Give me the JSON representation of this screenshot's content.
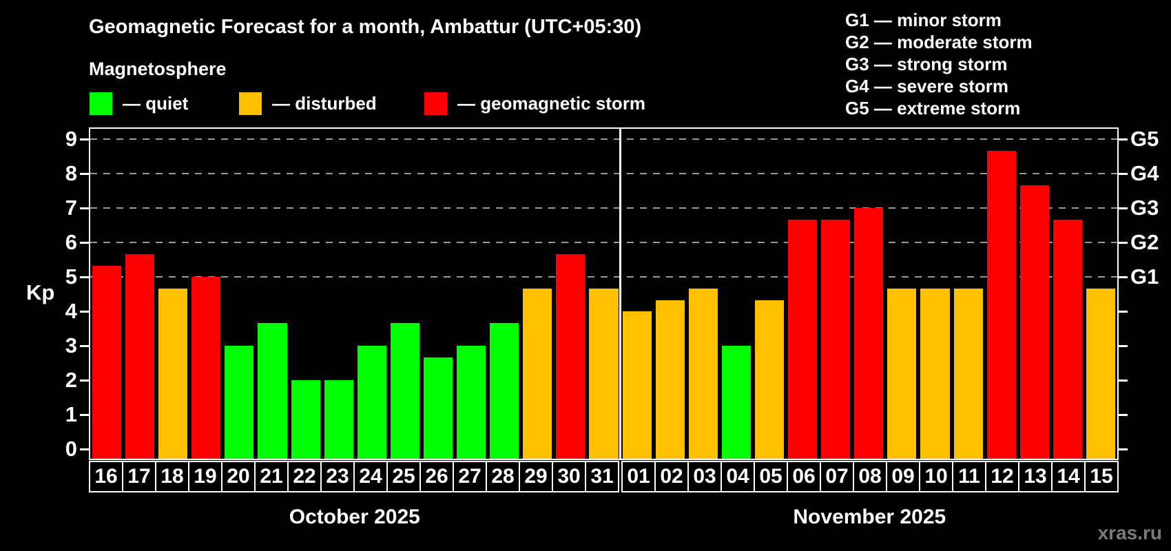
{
  "header": {
    "title": "Geomagnetic Forecast for a month, Ambattur (UTC+05:30)",
    "subtitle": "Magnetosphere"
  },
  "legend": {
    "items": [
      {
        "key": "quiet",
        "label": "— quiet",
        "color": "#00ff00"
      },
      {
        "key": "disturbed",
        "label": "— disturbed",
        "color": "#ffc000"
      },
      {
        "key": "storm",
        "label": "— geomagnetic storm",
        "color": "#ff0000"
      }
    ]
  },
  "g_legend": {
    "lines": [
      "G1 — minor storm",
      "G2 — moderate storm",
      "G3 — strong storm",
      "G4 — severe storm",
      "G5 — extreme storm"
    ]
  },
  "axis": {
    "kp_label": "Kp",
    "left_tick_labels": [
      "0",
      "1",
      "2",
      "3",
      "4",
      "5",
      "6",
      "7",
      "8",
      "9"
    ],
    "right_labels": [
      {
        "level": 5,
        "label": "G1"
      },
      {
        "level": 6,
        "label": "G2"
      },
      {
        "level": 7,
        "label": "G3"
      },
      {
        "level": 8,
        "label": "G4"
      },
      {
        "level": 9,
        "label": "G5"
      }
    ],
    "gridline_levels": [
      5,
      6,
      7,
      8,
      9
    ]
  },
  "chart_data": {
    "type": "bar",
    "title": "Geomagnetic Forecast for a month, Ambattur (UTC+05:30)",
    "ylabel": "Kp",
    "ylim": [
      0,
      9
    ],
    "grid": "dashed horizontal at Kp 5-9 (G1-G5)",
    "series_colors": {
      "quiet": "#00ff00",
      "disturbed": "#ffc000",
      "storm": "#ff0000"
    },
    "months": [
      {
        "name": "October 2025",
        "days": 16
      },
      {
        "name": "November 2025",
        "days": 15
      }
    ],
    "days": [
      {
        "date": "16",
        "kp": 5.33,
        "status": "storm"
      },
      {
        "date": "17",
        "kp": 5.67,
        "status": "storm"
      },
      {
        "date": "18",
        "kp": 4.67,
        "status": "disturbed"
      },
      {
        "date": "19",
        "kp": 5.0,
        "status": "storm"
      },
      {
        "date": "20",
        "kp": 3.0,
        "status": "quiet"
      },
      {
        "date": "21",
        "kp": 3.67,
        "status": "quiet"
      },
      {
        "date": "22",
        "kp": 2.0,
        "status": "quiet"
      },
      {
        "date": "23",
        "kp": 2.0,
        "status": "quiet"
      },
      {
        "date": "24",
        "kp": 3.0,
        "status": "quiet"
      },
      {
        "date": "25",
        "kp": 3.67,
        "status": "quiet"
      },
      {
        "date": "26",
        "kp": 2.67,
        "status": "quiet"
      },
      {
        "date": "27",
        "kp": 3.0,
        "status": "quiet"
      },
      {
        "date": "28",
        "kp": 3.67,
        "status": "quiet"
      },
      {
        "date": "29",
        "kp": 4.67,
        "status": "disturbed"
      },
      {
        "date": "30",
        "kp": 5.67,
        "status": "storm"
      },
      {
        "date": "31",
        "kp": 4.67,
        "status": "disturbed"
      },
      {
        "date": "01",
        "kp": 4.0,
        "status": "disturbed"
      },
      {
        "date": "02",
        "kp": 4.33,
        "status": "disturbed"
      },
      {
        "date": "03",
        "kp": 4.67,
        "status": "disturbed"
      },
      {
        "date": "04",
        "kp": 3.0,
        "status": "quiet"
      },
      {
        "date": "05",
        "kp": 4.33,
        "status": "disturbed"
      },
      {
        "date": "06",
        "kp": 6.67,
        "status": "storm"
      },
      {
        "date": "07",
        "kp": 6.67,
        "status": "storm"
      },
      {
        "date": "08",
        "kp": 7.0,
        "status": "storm"
      },
      {
        "date": "09",
        "kp": 4.67,
        "status": "disturbed"
      },
      {
        "date": "10",
        "kp": 4.67,
        "status": "disturbed"
      },
      {
        "date": "11",
        "kp": 4.67,
        "status": "disturbed"
      },
      {
        "date": "12",
        "kp": 8.67,
        "status": "storm"
      },
      {
        "date": "13",
        "kp": 7.67,
        "status": "storm"
      },
      {
        "date": "14",
        "kp": 6.67,
        "status": "storm"
      },
      {
        "date": "15",
        "kp": 4.67,
        "status": "disturbed"
      }
    ]
  },
  "watermark": "xras.ru"
}
